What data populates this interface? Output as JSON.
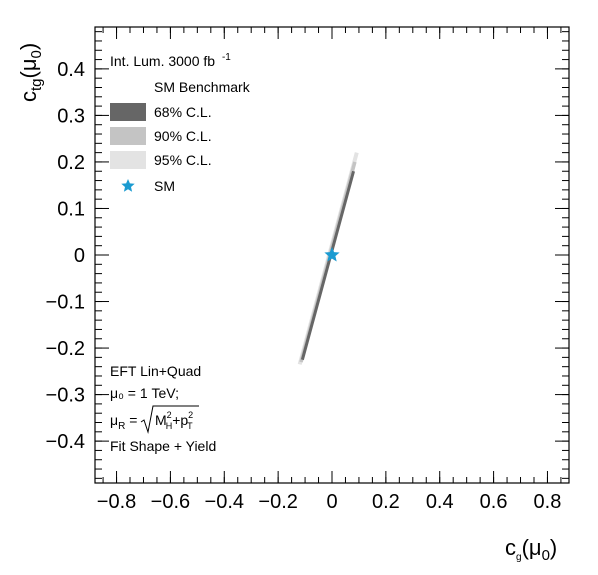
{
  "chart_data": {
    "type": "contour",
    "xlabel": "c_g(μ_0)",
    "ylabel": "c_tg(μ_0)",
    "xlim": [
      -0.88,
      0.88
    ],
    "ylim": [
      -0.49,
      0.49
    ],
    "x_ticks": [
      -0.8,
      -0.6,
      -0.4,
      -0.2,
      0,
      0.2,
      0.4,
      0.6,
      0.8
    ],
    "x_tick_labels": [
      "−0.8",
      "−0.6",
      "−0.4",
      "−0.2",
      "0",
      "0.2",
      "0.4",
      "0.6",
      "0.8"
    ],
    "y_ticks": [
      -0.4,
      -0.3,
      -0.2,
      -0.1,
      0,
      0.1,
      0.2,
      0.3,
      0.4
    ],
    "y_tick_labels": [
      "−0.4",
      "−0.3",
      "−0.2",
      "−0.1",
      "0",
      "0.1",
      "0.2",
      "0.3",
      "0.4"
    ],
    "luminosity_label": "Int. Lum. 3000 fb",
    "luminosity_exponent": "-1",
    "legend_title": "SM Benchmark",
    "legend_position": "top-left",
    "series": [
      {
        "name": "68% C.L.",
        "color": "#666666",
        "x": [
          -0.11,
          0.0,
          0.08
        ],
        "y": [
          -0.225,
          0.0,
          0.18
        ]
      },
      {
        "name": "90% C.L.",
        "color": "#c4c4c4",
        "x": [
          -0.115,
          0.0,
          0.085
        ],
        "y": [
          -0.23,
          0.0,
          0.2
        ]
      },
      {
        "name": "95% C.L.",
        "color": "#e3e3e3",
        "x": [
          -0.12,
          0.0,
          0.092
        ],
        "y": [
          -0.235,
          0.0,
          0.22
        ]
      }
    ],
    "sm_point": {
      "name": "SM",
      "x": 0.0,
      "y": 0.0,
      "color": "#1b9bd1"
    },
    "annotations": {
      "line1": "EFT Lin+Quad",
      "line2": "μ₀ = 1 TeV;",
      "line3_mu": "μ",
      "line3_sub": "R",
      "line3_eq": " = ",
      "line3_M": "M",
      "line3_Msup": "2",
      "line3_Msub": "H",
      "line3_plus": "+p",
      "line3_psup": "2",
      "line3_psub": "T",
      "line4": "Fit Shape + Yield"
    }
  }
}
